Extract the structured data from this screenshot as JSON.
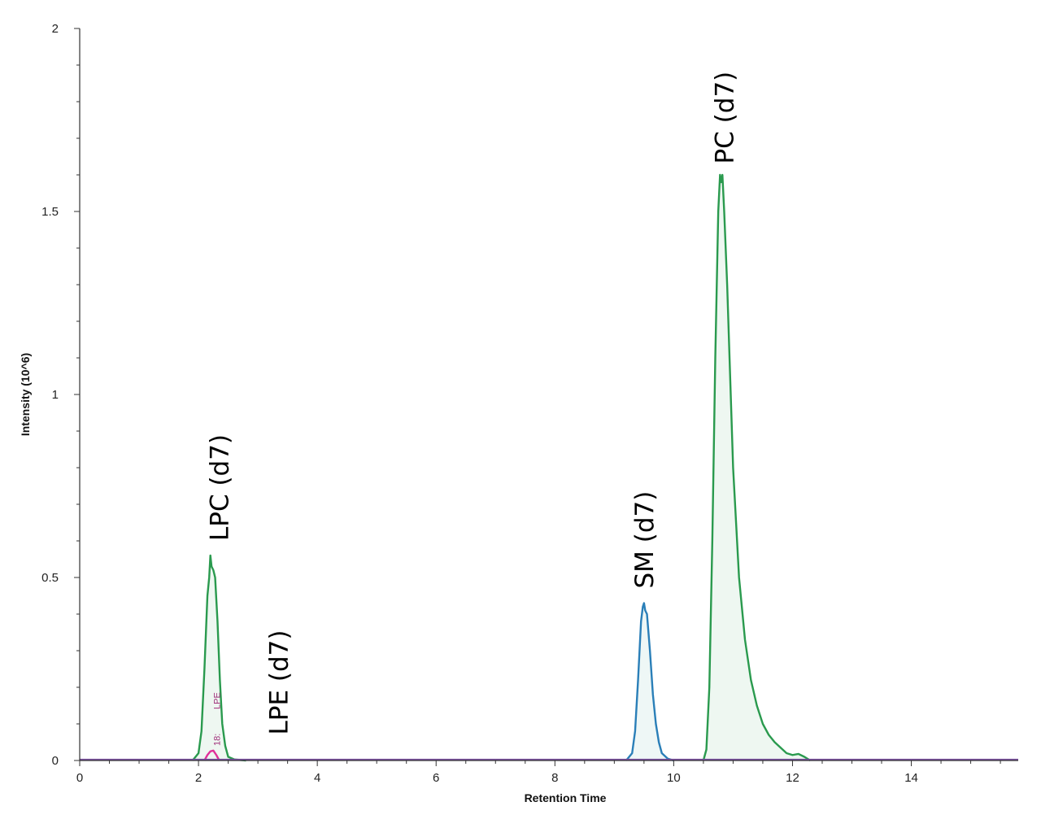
{
  "chart_data": {
    "type": "line",
    "xlabel": "Retention Time",
    "ylabel": "Intensity (10^6)",
    "xlim": [
      0,
      15.8
    ],
    "ylim": [
      0,
      2
    ],
    "x_ticks": [
      0,
      2,
      4,
      6,
      8,
      10,
      12,
      14
    ],
    "x_tick_labels": [
      "0",
      "2",
      "4",
      "6",
      "8",
      "10",
      "12",
      "14"
    ],
    "y_ticks": [
      0,
      0.5,
      1,
      1.5,
      2
    ],
    "y_tick_labels": [
      "0",
      "0.5",
      "1",
      "1.5",
      "2"
    ],
    "series": [
      {
        "color": "#2a9a4e",
        "fill": "#eef7f1",
        "x": [
          1.9,
          2.0,
          2.05,
          2.1,
          2.15,
          2.18,
          2.2,
          2.22,
          2.25,
          2.28,
          2.32,
          2.36,
          2.4,
          2.45,
          2.5,
          2.6,
          2.8
        ],
        "y": [
          0,
          0.02,
          0.08,
          0.25,
          0.45,
          0.5,
          0.56,
          0.53,
          0.52,
          0.5,
          0.38,
          0.22,
          0.1,
          0.04,
          0.01,
          0.003,
          0
        ]
      },
      {
        "color": "#e0309a",
        "fill": "none",
        "x": [
          2.1,
          2.15,
          2.2,
          2.25,
          2.3,
          2.35
        ],
        "y": [
          0,
          0.015,
          0.025,
          0.027,
          0.015,
          0
        ]
      },
      {
        "color": "#2a7fb8",
        "fill": "#eef7f6",
        "x": [
          9.2,
          9.3,
          9.35,
          9.4,
          9.45,
          9.48,
          9.5,
          9.52,
          9.55,
          9.6,
          9.65,
          9.7,
          9.75,
          9.8,
          9.9,
          10.0
        ],
        "y": [
          0,
          0.02,
          0.08,
          0.22,
          0.38,
          0.42,
          0.43,
          0.41,
          0.4,
          0.3,
          0.18,
          0.1,
          0.05,
          0.02,
          0.005,
          0
        ]
      },
      {
        "color": "#2a9a4e",
        "fill": "#eef7f1",
        "x": [
          10.5,
          10.55,
          10.6,
          10.65,
          10.7,
          10.75,
          10.78,
          10.8,
          10.82,
          10.85,
          10.9,
          10.95,
          11.0,
          11.1,
          11.2,
          11.3,
          11.4,
          11.5,
          11.6,
          11.7,
          11.8,
          11.9,
          12.0,
          12.1,
          12.2,
          12.3
        ],
        "y": [
          0,
          0.03,
          0.2,
          0.6,
          1.1,
          1.5,
          1.6,
          1.58,
          1.6,
          1.5,
          1.3,
          1.05,
          0.8,
          0.5,
          0.33,
          0.22,
          0.15,
          0.1,
          0.07,
          0.05,
          0.035,
          0.02,
          0.015,
          0.018,
          0.01,
          0
        ]
      },
      {
        "color": "#7a4fa0",
        "fill": "none",
        "x": [
          0,
          15.8
        ],
        "y": [
          0.002,
          0.002
        ]
      }
    ],
    "annotations": [
      {
        "text": "LPC (d7)",
        "x": 2.35,
        "y": 0.6
      },
      {
        "text": "LPE (d7)",
        "x": 3.35,
        "y": 0.07
      },
      {
        "text": "SM (d7)",
        "x": 9.5,
        "y": 0.47
      },
      {
        "text": "PC (d7)",
        "x": 10.85,
        "y": 1.63
      }
    ],
    "small_annotation": {
      "text": "18:",
      "x": 2.25,
      "y": 0.04,
      "color": "#a0307a"
    },
    "small_annotation_2": {
      "text": "LPE",
      "x": 2.25,
      "y": 0.14,
      "color": "#a0307a"
    }
  }
}
